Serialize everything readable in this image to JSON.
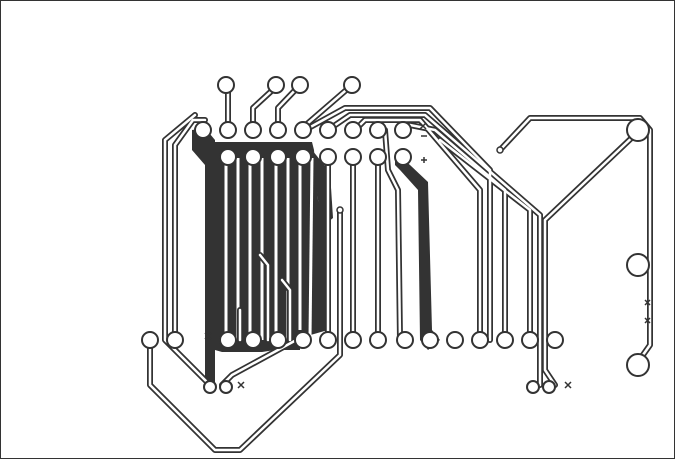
{
  "board": {
    "colors": {
      "background": "#ffffff",
      "copper": "#333333",
      "outline": "#333333",
      "pad_fill": "#ffffff"
    },
    "layer": "bottom copper",
    "pad_count": 44,
    "silk_marks": [
      "x",
      "x",
      "x",
      "+",
      "+",
      "x",
      "x"
    ]
  }
}
